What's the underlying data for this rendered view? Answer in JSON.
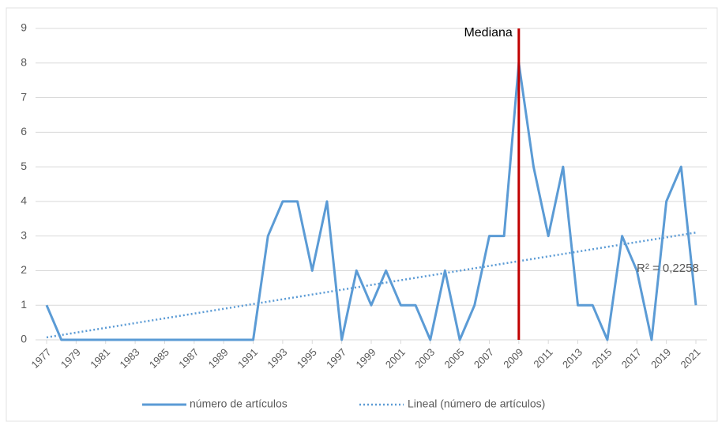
{
  "chart_data": {
    "type": "line",
    "x": [
      1977,
      1978,
      1979,
      1980,
      1981,
      1982,
      1983,
      1984,
      1985,
      1986,
      1987,
      1988,
      1989,
      1990,
      1991,
      1992,
      1993,
      1994,
      1995,
      1996,
      1997,
      1998,
      1999,
      2000,
      2001,
      2002,
      2003,
      2004,
      2005,
      2006,
      2007,
      2008,
      2009,
      2010,
      2011,
      2012,
      2013,
      2014,
      2015,
      2016,
      2017,
      2018,
      2019,
      2020,
      2021
    ],
    "series": [
      {
        "name": "número de artículos",
        "color": "#5b9bd5",
        "values": [
          1,
          0,
          0,
          0,
          0,
          0,
          0,
          0,
          0,
          0,
          0,
          0,
          0,
          0,
          0,
          3,
          4,
          4,
          2,
          4,
          0,
          2,
          1,
          2,
          1,
          1,
          0,
          2,
          0,
          1,
          3,
          3,
          8,
          5,
          3,
          5,
          1,
          1,
          0,
          3,
          2,
          0,
          4,
          5,
          1
        ]
      }
    ],
    "trendline": {
      "name": "Lineal (número de artículos)",
      "color": "#5b9bd5",
      "x": [
        1977,
        2021
      ],
      "values": [
        0.07,
        3.1
      ],
      "annotation": "R² = 0,2258"
    },
    "median": {
      "label": "Mediana",
      "x": 2009,
      "color": "#c00000"
    },
    "xlim": [
      1977,
      2021
    ],
    "xticks": [
      1977,
      1979,
      1981,
      1983,
      1985,
      1987,
      1989,
      1991,
      1993,
      1995,
      1997,
      1999,
      2001,
      2003,
      2005,
      2007,
      2009,
      2011,
      2013,
      2015,
      2017,
      2019,
      2021
    ],
    "ylim": [
      0,
      9
    ],
    "yticks": [
      0,
      1,
      2,
      3,
      4,
      5,
      6,
      7,
      8,
      9
    ],
    "grid": true
  }
}
